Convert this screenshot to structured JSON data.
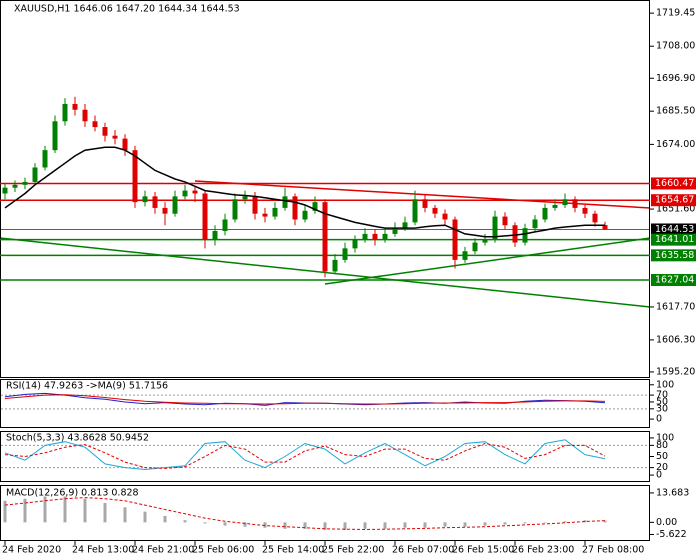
{
  "chart_data": [
    {
      "type": "candlestick",
      "title": "XAUUSD,H1  1646.06 1647.20 1644.34 1644.53",
      "categories": [
        "24 Feb 2020",
        null,
        null,
        null,
        null,
        null,
        null,
        "24 Feb 13:00",
        null,
        null,
        null,
        null,
        null,
        "24 Feb 21:00",
        null,
        null,
        null,
        null,
        null,
        "25 Feb 06:00",
        null,
        null,
        null,
        null,
        null,
        null,
        "25 Feb 14:00",
        null,
        null,
        null,
        null,
        null,
        "25 Feb 22:00",
        null,
        null,
        null,
        null,
        null,
        null,
        "26 Feb 07:00",
        null,
        null,
        null,
        null,
        null,
        "26 Feb 15:00",
        null,
        null,
        null,
        null,
        null,
        "26 Feb 23:00",
        null,
        null,
        null,
        null,
        null,
        null,
        "27 Feb 08:00",
        null,
        null
      ],
      "open": [
        1657,
        1659,
        1660,
        1661,
        1666,
        1672,
        1682,
        1688,
        1686,
        1682,
        1680,
        1677,
        1676,
        1672,
        1654,
        1656,
        1652,
        1650,
        1656,
        1658,
        1657,
        1641,
        1644,
        1648,
        1655,
        1656,
        1650,
        1649,
        1652,
        1656,
        1648,
        1651,
        1654,
        1630,
        1634,
        1638,
        1641,
        1643,
        1641,
        1643,
        1645,
        1647,
        1655,
        1652,
        1650,
        1648,
        1634,
        1637,
        1640,
        1641,
        1649,
        1646,
        1640,
        1645,
        1648,
        1652,
        1653,
        1655,
        1652,
        1650,
        1646.06
      ],
      "high": [
        1660.5,
        1661.5,
        1662.5,
        1667.5,
        1673.5,
        1684,
        1690,
        1690.5,
        1688,
        1684,
        1681.5,
        1679,
        1677.5,
        1673.5,
        1658,
        1657.5,
        1654,
        1658,
        1660,
        1659.5,
        1658,
        1646,
        1650,
        1657,
        1658,
        1657.5,
        1652,
        1654,
        1659,
        1657,
        1653,
        1656,
        1655,
        1636,
        1640,
        1642.5,
        1645,
        1644.5,
        1645,
        1647,
        1649,
        1658,
        1656.5,
        1653,
        1651.5,
        1649,
        1638.5,
        1641.5,
        1643,
        1651,
        1650.5,
        1647,
        1646.5,
        1649.5,
        1653.5,
        1655,
        1657,
        1656,
        1653,
        1651,
        1647.2
      ],
      "low": [
        1655,
        1657.5,
        1658.5,
        1660,
        1665,
        1671,
        1680.5,
        1684,
        1680,
        1678.5,
        1675,
        1674,
        1670,
        1652,
        1652.5,
        1650,
        1646,
        1649,
        1655,
        1654,
        1638,
        1639,
        1642.5,
        1647,
        1653.5,
        1648,
        1647,
        1648,
        1651,
        1646,
        1647,
        1650,
        1628,
        1629,
        1633,
        1636.5,
        1640,
        1639,
        1640,
        1642,
        1644,
        1646,
        1650.5,
        1648.5,
        1646,
        1631,
        1633,
        1636,
        1639,
        1640,
        1644.5,
        1638.5,
        1639,
        1644,
        1647,
        1651,
        1652,
        1650.5,
        1648.5,
        1645.5,
        1644.34
      ],
      "close": [
        1659,
        1660,
        1661,
        1666,
        1672,
        1682,
        1688,
        1686,
        1682,
        1680,
        1677,
        1676,
        1672,
        1654,
        1656,
        1652,
        1650,
        1656,
        1658,
        1657,
        1641,
        1644,
        1648,
        1655,
        1656,
        1650,
        1649,
        1652,
        1656,
        1648,
        1651,
        1654,
        1630,
        1634,
        1638,
        1641,
        1643,
        1641,
        1643,
        1645,
        1647,
        1655,
        1652,
        1650,
        1648,
        1634,
        1637,
        1640,
        1641,
        1649,
        1646,
        1640,
        1645,
        1648,
        1652,
        1653,
        1655,
        1652,
        1650,
        1647,
        1644.53
      ],
      "ma": [
        1652,
        1654.5,
        1657,
        1660,
        1662.5,
        1665,
        1667.5,
        1670,
        1672,
        1672.5,
        1673,
        1673,
        1672,
        1670,
        1667.5,
        1665,
        1663.5,
        1662,
        1661,
        1659.5,
        1658,
        1657.5,
        1657,
        1656.5,
        1656.3,
        1656,
        1655.5,
        1655,
        1654.5,
        1654,
        1653,
        1651.5,
        1650,
        1649,
        1648,
        1647,
        1646.3,
        1645.6,
        1645,
        1645,
        1645,
        1645,
        1645.5,
        1645.8,
        1646,
        1644.5,
        1643,
        1642.5,
        1642,
        1642,
        1642.3,
        1642.6,
        1643,
        1643.7,
        1644.3,
        1645,
        1645.4,
        1645.7,
        1646,
        1646,
        1646
      ],
      "up_color": "#008000",
      "down_color": "#e00000",
      "ma_color": "#000000",
      "price_levels": [
        {
          "value": 1660.47,
          "color": "#e00000"
        },
        {
          "value": 1654.67,
          "color": "#e00000"
        },
        {
          "value": 1644.53,
          "color": "#000000"
        },
        {
          "value": 1641.01,
          "color": "#008000"
        },
        {
          "value": 1635.58,
          "color": "#008000"
        },
        {
          "value": 1627.04,
          "color": "#008000"
        }
      ],
      "ylim": [
        1593.1,
        1724.0
      ],
      "yticks": [
        1719.45,
        {
          "value": 1708,
          "label": "1708.00"
        },
        {
          "value": 1696.9,
          "label": "1696.90"
        },
        {
          "value": 1685.5,
          "label": "1685.50"
        },
        {
          "value": 1674,
          "label": "1674.00"
        },
        {
          "value": 1651.6,
          "label": "1651.60"
        },
        {
          "value": 1617.7,
          "label": "1617.70"
        },
        {
          "value": 1606.3,
          "label": "1606.30"
        },
        {
          "value": 1595.2,
          "label": "1595.20"
        }
      ]
    },
    {
      "type": "line",
      "title": "RSI(14) 47.9263 ->MA(9) 51.7156",
      "series": [
        {
          "color": "#1f1fd0",
          "dash": false,
          "values": [
            65,
            72,
            75,
            70,
            62,
            58,
            50,
            45,
            48,
            44,
            42,
            46,
            45,
            40,
            48,
            47,
            46,
            44,
            42,
            44,
            47,
            48,
            46,
            50,
            47,
            46,
            52,
            55,
            54,
            52,
            47.9263
          ]
        },
        {
          "color": "#e00000",
          "dash": false,
          "values": [
            60,
            65,
            70,
            71,
            68,
            63,
            57,
            52,
            49,
            47,
            46,
            45,
            45,
            44,
            45,
            46,
            46,
            45,
            44,
            44,
            45,
            46,
            47,
            47,
            48,
            48,
            50,
            52,
            53,
            53,
            51.7156
          ]
        }
      ],
      "ylim": [
        -23,
        114
      ],
      "yticks": [
        100,
        70,
        50,
        30,
        0
      ],
      "levels": [
        70,
        30
      ]
    },
    {
      "type": "line",
      "title": "Stoch(5,3,3) 43.8628 50.9452",
      "series": [
        {
          "color": "#20a8d8",
          "dash": false,
          "values": [
            60,
            40,
            80,
            90,
            75,
            30,
            20,
            15,
            20,
            25,
            85,
            90,
            40,
            20,
            50,
            85,
            70,
            30,
            60,
            85,
            55,
            25,
            50,
            85,
            90,
            55,
            30,
            85,
            95,
            55,
            43.8628
          ]
        },
        {
          "color": "#e00000",
          "dash": true,
          "values": [
            55,
            50,
            60,
            75,
            82,
            60,
            35,
            20,
            18,
            22,
            50,
            80,
            70,
            35,
            35,
            65,
            78,
            55,
            50,
            70,
            70,
            45,
            40,
            65,
            85,
            75,
            45,
            55,
            80,
            80,
            50.9452
          ]
        }
      ],
      "ylim": [
        -16,
        116
      ],
      "yticks": [
        100,
        80,
        50,
        20,
        0
      ],
      "levels": [
        80,
        20
      ]
    },
    {
      "type": "bar",
      "title": "MACD(12,26,9) 0.813 0.828",
      "values": [
        10,
        11,
        12,
        12,
        11,
        9,
        7,
        5,
        3,
        1,
        -0.5,
        -1.5,
        -2,
        -2.5,
        -3,
        -3,
        -3.5,
        -3.5,
        -3,
        -3,
        -2.5,
        -2.5,
        -2,
        -2,
        -1.5,
        -1,
        -0.5,
        0,
        0.5,
        1,
        0.813
      ],
      "color": "#a8a8a8",
      "signal": {
        "color": "#e00000",
        "values": [
          8,
          9,
          10,
          11,
          11.5,
          11,
          10,
          8,
          6,
          4,
          2,
          0.5,
          -0.5,
          -1.5,
          -2,
          -2.5,
          -3,
          -3.2,
          -3.3,
          -3.2,
          -3,
          -2.8,
          -2.5,
          -2.3,
          -2,
          -1.6,
          -1.2,
          -0.7,
          -0.2,
          0.4,
          0.828
        ]
      },
      "ylim": [
        -8.2,
        16.9
      ],
      "yticks": [
        13.683,
        {
          "value": 0,
          "label": "0.00"
        },
        -5.622
      ]
    }
  ]
}
